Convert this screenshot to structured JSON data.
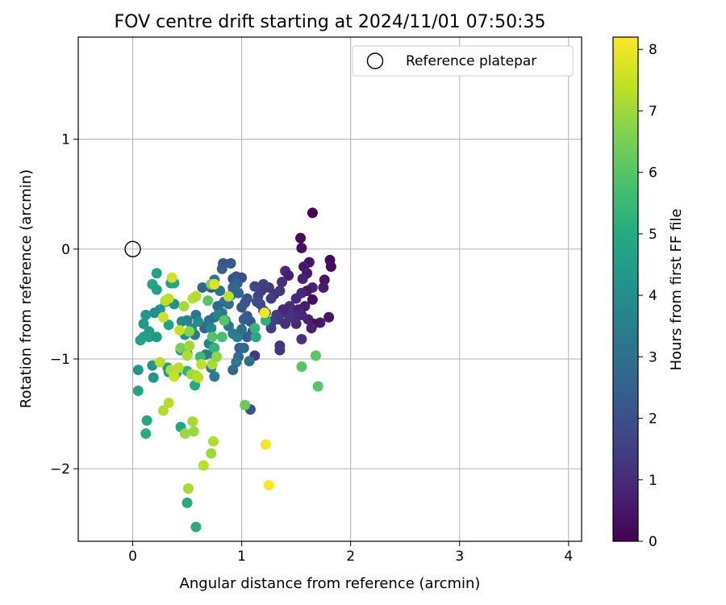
{
  "chart_data": {
    "type": "scatter",
    "title": "FOV centre drift starting at 2024/11/01 07:50:35",
    "xlabel": "Angular distance from reference (arcmin)",
    "ylabel": "Rotation from reference (arcmin)",
    "xlim": [
      -0.5,
      4.12
    ],
    "ylim": [
      -2.66,
      1.93
    ],
    "xticks": [
      0,
      1,
      2,
      3,
      4
    ],
    "yticks": [
      -2,
      -1,
      0,
      1
    ],
    "grid": true,
    "legend": {
      "position": "top-right",
      "entries": [
        "Reference platepar"
      ]
    },
    "colorbar": {
      "label": "Hours from first FF file",
      "range": [
        0,
        8.2
      ],
      "ticks": [
        0,
        1,
        2,
        3,
        4,
        5,
        6,
        7,
        8
      ],
      "colormap": "viridis"
    },
    "reference_point": {
      "x": 0,
      "y": 0
    },
    "points": [
      [
        1.65,
        0.33,
        0.1
      ],
      [
        1.54,
        0.1,
        0.2
      ],
      [
        1.55,
        0.01,
        0.3
      ],
      [
        1.81,
        -0.1,
        0.2
      ],
      [
        1.82,
        -0.16,
        0.3
      ],
      [
        1.62,
        -0.12,
        0.4
      ],
      [
        1.57,
        -0.16,
        0.5
      ],
      [
        1.6,
        -0.22,
        0.6
      ],
      [
        1.56,
        -0.27,
        0.7
      ],
      [
        1.65,
        -0.35,
        0.8
      ],
      [
        1.6,
        -0.38,
        0.5
      ],
      [
        1.55,
        -0.4,
        0.9
      ],
      [
        1.5,
        -0.45,
        1.0
      ],
      [
        1.76,
        -0.28,
        0.4
      ],
      [
        1.75,
        -0.35,
        0.6
      ],
      [
        1.65,
        -0.46,
        0.3
      ],
      [
        1.58,
        -0.52,
        0.7
      ],
      [
        1.52,
        -0.55,
        0.8
      ],
      [
        1.48,
        -0.6,
        1.0
      ],
      [
        1.44,
        -0.52,
        1.1
      ],
      [
        1.41,
        -0.58,
        1.2
      ],
      [
        1.38,
        -0.55,
        0.9
      ],
      [
        1.4,
        -0.2,
        1.0
      ],
      [
        1.43,
        -0.24,
        0.7
      ],
      [
        1.37,
        -0.3,
        1.1
      ],
      [
        1.35,
        -0.38,
        1.3
      ],
      [
        1.3,
        -0.41,
        1.2
      ],
      [
        1.27,
        -0.45,
        1.4
      ],
      [
        1.25,
        -0.35,
        1.3
      ],
      [
        1.2,
        -0.32,
        1.5
      ],
      [
        1.18,
        -0.38,
        1.4
      ],
      [
        1.15,
        -0.43,
        1.6
      ],
      [
        1.12,
        -0.34,
        1.7
      ],
      [
        1.8,
        -0.62,
        0.5
      ],
      [
        1.72,
        -0.67,
        0.6
      ],
      [
        1.66,
        -0.68,
        0.4
      ],
      [
        1.64,
        -0.72,
        0.8
      ],
      [
        1.61,
        -0.64,
        0.7
      ],
      [
        1.55,
        -0.6,
        0.9
      ],
      [
        1.5,
        -0.68,
        1.0
      ],
      [
        1.44,
        -0.62,
        1.2
      ],
      [
        1.4,
        -0.68,
        1.1
      ],
      [
        1.34,
        -0.64,
        1.3
      ],
      [
        1.32,
        -0.6,
        1.4
      ],
      [
        1.28,
        -0.66,
        1.6
      ],
      [
        1.27,
        -0.72,
        1.5
      ],
      [
        1.22,
        -0.58,
        1.7
      ],
      [
        1.2,
        -0.56,
        1.6
      ],
      [
        1.35,
        -0.88,
        1.2
      ],
      [
        1.35,
        -0.92,
        1.3
      ],
      [
        1.55,
        -0.82,
        1.1
      ],
      [
        1.12,
        -0.97,
        1.4
      ],
      [
        1.17,
        -0.5,
        1.8
      ],
      [
        1.14,
        -0.48,
        1.9
      ],
      [
        1.05,
        -0.45,
        2.0
      ],
      [
        1.03,
        -0.49,
        2.1
      ],
      [
        1.0,
        -0.53,
        2.2
      ],
      [
        1.05,
        -0.61,
        2.3
      ],
      [
        1.02,
        -0.64,
        2.4
      ],
      [
        1.08,
        -0.66,
        2.2
      ],
      [
        1.1,
        -0.75,
        2.0
      ],
      [
        1.05,
        -0.8,
        2.5
      ],
      [
        0.95,
        -0.25,
        2.0
      ],
      [
        0.92,
        -0.27,
        2.2
      ],
      [
        0.9,
        -0.13,
        2.3
      ],
      [
        0.83,
        -0.13,
        2.1
      ],
      [
        0.82,
        -0.18,
        2.4
      ],
      [
        1.0,
        -0.26,
        1.9
      ],
      [
        0.96,
        -0.31,
        2.6
      ],
      [
        0.92,
        -0.35,
        2.7
      ],
      [
        0.97,
        -0.4,
        2.8
      ],
      [
        0.9,
        -0.42,
        2.5
      ],
      [
        0.88,
        -0.5,
        2.9
      ],
      [
        0.84,
        -0.48,
        3.0
      ],
      [
        0.8,
        -0.38,
        3.1
      ],
      [
        0.72,
        -0.35,
        2.6
      ],
      [
        0.75,
        -0.28,
        3.2
      ],
      [
        0.78,
        -0.52,
        2.7
      ],
      [
        0.82,
        -0.58,
        3.3
      ],
      [
        0.75,
        -0.62,
        2.9
      ],
      [
        0.7,
        -0.65,
        3.0
      ],
      [
        0.68,
        -0.7,
        3.4
      ],
      [
        0.66,
        -0.72,
        2.8
      ],
      [
        0.85,
        -0.65,
        3.1
      ],
      [
        0.88,
        -0.7,
        3.2
      ],
      [
        0.92,
        -0.77,
        3.4
      ],
      [
        0.96,
        -0.8,
        3.5
      ],
      [
        1.0,
        -0.73,
        3.0
      ],
      [
        0.98,
        -0.9,
        2.4
      ],
      [
        1.02,
        -0.9,
        2.7
      ],
      [
        0.97,
        -0.98,
        2.9
      ],
      [
        0.95,
        -1.03,
        3.3
      ],
      [
        1.07,
        -1.02,
        3.0
      ],
      [
        0.92,
        -1.1,
        2.8
      ],
      [
        1.08,
        -1.46,
        2.0
      ],
      [
        0.78,
        -0.6,
        3.6
      ],
      [
        0.72,
        -0.72,
        3.8
      ],
      [
        0.7,
        -0.86,
        3.7
      ],
      [
        0.73,
        -0.95,
        3.4
      ],
      [
        0.67,
        -0.96,
        3.5
      ],
      [
        0.72,
        -1.08,
        3.3
      ],
      [
        0.75,
        -1.16,
        3.4
      ],
      [
        0.58,
        -0.6,
        3.1
      ],
      [
        0.5,
        -0.65,
        3.5
      ],
      [
        0.57,
        -0.78,
        3.4
      ],
      [
        0.64,
        -0.35,
        2.7
      ],
      [
        0.6,
        -0.66,
        4.0
      ],
      [
        0.54,
        -0.72,
        3.9
      ],
      [
        0.45,
        -0.66,
        3.8
      ],
      [
        0.38,
        -0.5,
        4.1
      ],
      [
        0.48,
        -0.78,
        4.2
      ],
      [
        0.5,
        -0.95,
        4.0
      ],
      [
        0.44,
        -0.92,
        4.3
      ],
      [
        0.35,
        -0.31,
        4.6
      ],
      [
        0.3,
        -0.48,
        4.4
      ],
      [
        0.25,
        -0.55,
        4.2
      ],
      [
        0.2,
        -0.58,
        4.0
      ],
      [
        0.12,
        -0.6,
        4.3
      ],
      [
        0.1,
        -0.68,
        4.4
      ],
      [
        0.15,
        -0.75,
        4.5
      ],
      [
        0.1,
        -0.8,
        4.5
      ],
      [
        0.15,
        -0.8,
        4.6
      ],
      [
        0.22,
        -0.8,
        4.4
      ],
      [
        0.07,
        -0.83,
        4.7
      ],
      [
        0.33,
        -0.69,
        4.8
      ],
      [
        0.38,
        -0.31,
        4.9
      ],
      [
        0.22,
        -0.22,
        4.7
      ],
      [
        0.18,
        -0.32,
        4.8
      ],
      [
        0.22,
        -0.37,
        4.6
      ],
      [
        0.05,
        -1.1,
        4.2
      ],
      [
        0.18,
        -1.06,
        4.3
      ],
      [
        0.19,
        -1.17,
        4.4
      ],
      [
        0.32,
        -1.08,
        4.5
      ],
      [
        0.33,
        -1.12,
        4.6
      ],
      [
        0.4,
        -1.13,
        4.7
      ],
      [
        0.05,
        -1.29,
        4.8
      ],
      [
        0.13,
        -1.56,
        4.9
      ],
      [
        0.12,
        -1.68,
        5.0
      ],
      [
        0.44,
        -1.62,
        4.9
      ],
      [
        0.57,
        -1.24,
        5.0
      ],
      [
        0.5,
        -2.31,
        5.0
      ],
      [
        0.58,
        -2.53,
        5.1
      ],
      [
        0.5,
        -1.11,
        5.3
      ],
      [
        0.62,
        -0.98,
        5.6
      ],
      [
        0.73,
        -0.8,
        5.9
      ],
      [
        0.84,
        -0.65,
        6.0
      ],
      [
        0.82,
        -0.8,
        5.8
      ],
      [
        0.75,
        -0.9,
        5.4
      ],
      [
        1.22,
        -0.65,
        5.2
      ],
      [
        1.13,
        -0.8,
        5.0
      ],
      [
        1.12,
        -0.72,
        5.4
      ],
      [
        0.69,
        -0.47,
        6.0
      ],
      [
        0.72,
        -0.32,
        6.5
      ],
      [
        1.68,
        -0.97,
        6.1
      ],
      [
        1.55,
        -1.07,
        6.0
      ],
      [
        1.7,
        -1.25,
        6.0
      ],
      [
        1.03,
        -1.42,
        6.3
      ],
      [
        0.44,
        -0.9,
        6.5
      ],
      [
        0.52,
        -0.75,
        6.7
      ],
      [
        0.52,
        -0.88,
        7.0
      ],
      [
        0.5,
        -0.97,
        7.2
      ],
      [
        0.54,
        -1.14,
        7.0
      ],
      [
        0.58,
        -1.15,
        7.1
      ],
      [
        0.6,
        -1.17,
        7.3
      ],
      [
        0.63,
        -1.05,
        7.4
      ],
      [
        0.73,
        -1.05,
        7.1
      ],
      [
        0.77,
        -0.98,
        6.8
      ],
      [
        0.88,
        -0.43,
        7.4
      ],
      [
        0.55,
        -0.45,
        7.3
      ],
      [
        0.58,
        -0.43,
        7.2
      ],
      [
        0.47,
        -0.52,
        7.1
      ],
      [
        0.43,
        -0.74,
        7.5
      ],
      [
        0.3,
        -0.47,
        7.3
      ],
      [
        0.33,
        -0.45,
        7.4
      ],
      [
        0.36,
        -0.26,
        7.6
      ],
      [
        0.28,
        -0.62,
        7.6
      ],
      [
        0.25,
        -1.03,
        7.3
      ],
      [
        0.35,
        -1.1,
        7.2
      ],
      [
        0.38,
        -1.16,
        7.5
      ],
      [
        0.42,
        -1.08,
        7.3
      ],
      [
        0.28,
        -1.47,
        7.2
      ],
      [
        0.33,
        -1.4,
        7.3
      ],
      [
        0.48,
        -1.68,
        7.0
      ],
      [
        0.55,
        -1.57,
        7.1
      ],
      [
        0.56,
        -1.66,
        6.9
      ],
      [
        0.74,
        -1.75,
        7.2
      ],
      [
        0.72,
        -1.86,
        7.0
      ],
      [
        0.65,
        -1.97,
        7.3
      ],
      [
        0.51,
        -2.18,
        7.1
      ],
      [
        0.75,
        -0.32,
        7.8
      ],
      [
        1.21,
        -0.58,
        8.0
      ],
      [
        1.22,
        -1.78,
        8.1
      ],
      [
        1.25,
        -2.15,
        8.2
      ]
    ]
  }
}
